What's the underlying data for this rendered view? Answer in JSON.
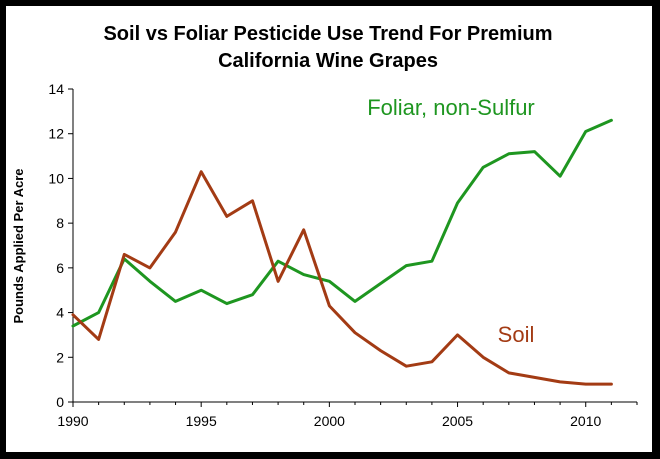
{
  "chart_data": {
    "type": "line",
    "title_lines": [
      "Soil vs Foliar Pesticide Use Trend For Premium",
      "California Wine Grapes"
    ],
    "xlabel": "",
    "ylabel": "Pounds Applied Per Acre",
    "x": [
      1990,
      1991,
      1992,
      1993,
      1994,
      1995,
      1996,
      1997,
      1998,
      1999,
      2000,
      2001,
      2002,
      2003,
      2004,
      2005,
      2006,
      2007,
      2008,
      2009,
      2010,
      2011
    ],
    "xlim": [
      1990,
      2012
    ],
    "ylim": [
      0,
      14
    ],
    "x_ticks": [
      "1990",
      "1995",
      "2000",
      "2005",
      "2010"
    ],
    "y_ticks": [
      "0",
      "2",
      "4",
      "6",
      "8",
      "10",
      "12",
      "14"
    ],
    "grid": false,
    "series": [
      {
        "name": "Foliar, non-Sulfur",
        "color": "#1e9620",
        "values": [
          3.4,
          4.0,
          6.4,
          5.4,
          4.5,
          5.0,
          4.4,
          4.8,
          6.3,
          5.7,
          5.4,
          4.5,
          5.3,
          6.1,
          6.3,
          8.9,
          10.5,
          11.1,
          11.2,
          10.1,
          12.1,
          12.6
        ]
      },
      {
        "name": "Soil",
        "color": "#a33b14",
        "values": [
          3.9,
          2.8,
          6.6,
          6.0,
          7.6,
          10.3,
          8.3,
          9.0,
          5.4,
          7.7,
          4.3,
          3.1,
          2.3,
          1.6,
          1.8,
          3.0,
          2.0,
          1.3,
          1.1,
          0.9,
          0.8,
          0.8
        ]
      }
    ]
  }
}
